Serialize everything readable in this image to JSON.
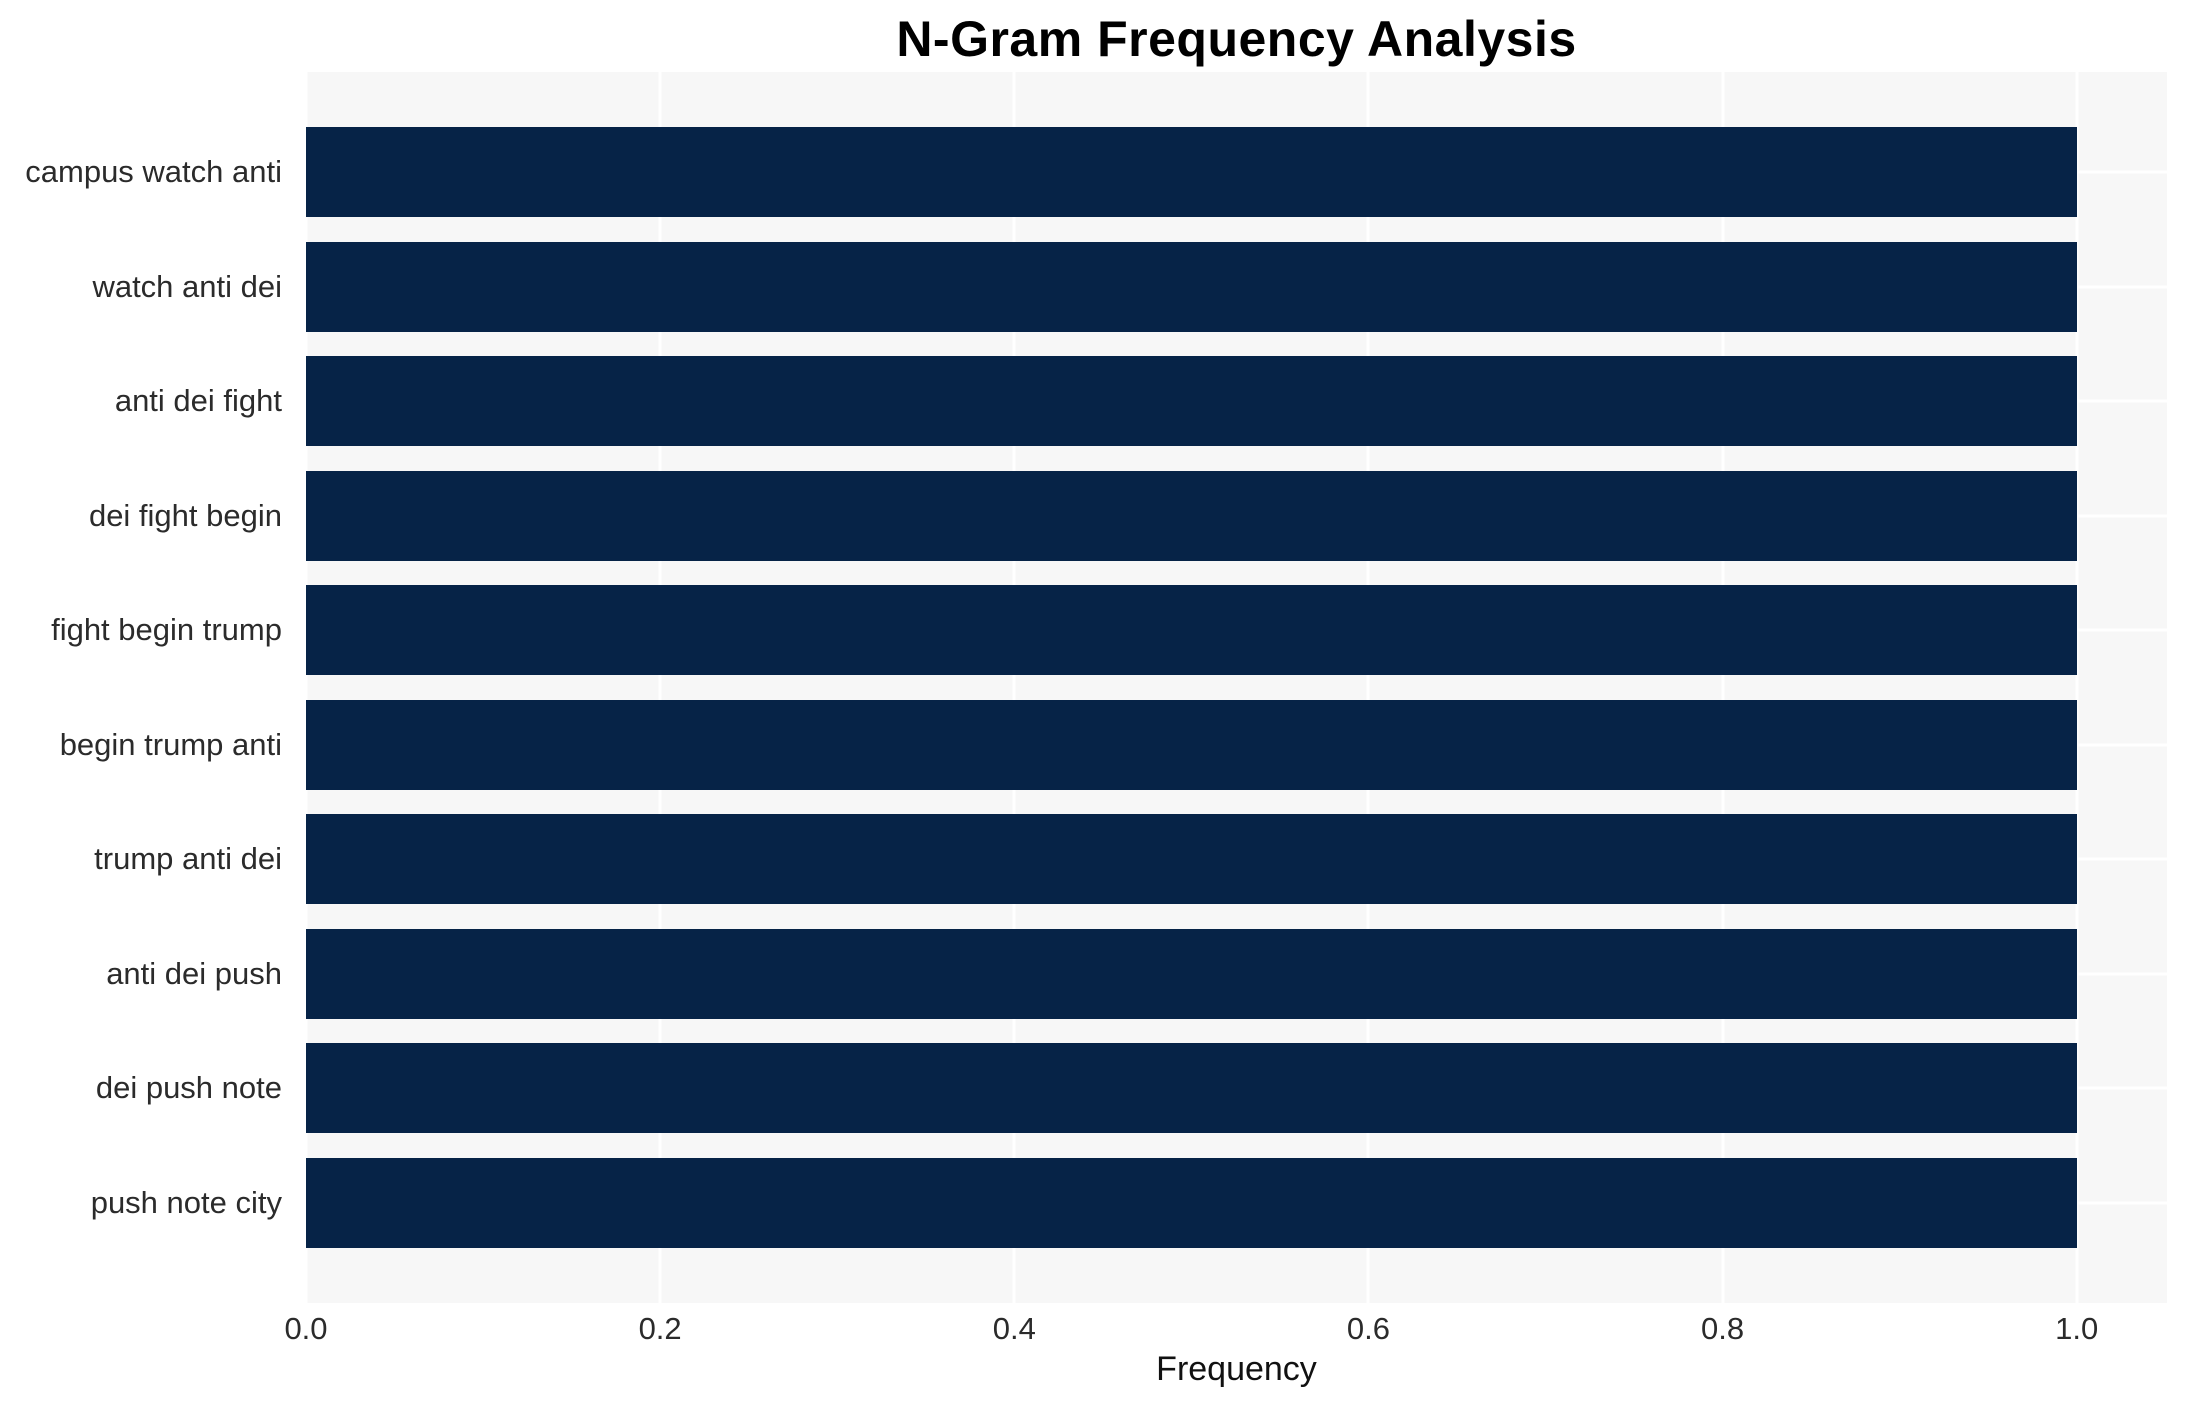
{
  "chart_data": {
    "type": "bar",
    "orientation": "horizontal",
    "title": "N-Gram Frequency Analysis",
    "xlabel": "Frequency",
    "ylabel": "",
    "categories": [
      "campus watch anti",
      "watch anti dei",
      "anti dei fight",
      "dei fight begin",
      "fight begin trump",
      "begin trump anti",
      "trump anti dei",
      "anti dei push",
      "dei push note",
      "push note city"
    ],
    "values": [
      1.0,
      1.0,
      1.0,
      1.0,
      1.0,
      1.0,
      1.0,
      1.0,
      1.0,
      1.0
    ],
    "xlim": [
      0,
      1.051
    ],
    "xticks": [
      0,
      0.2,
      0.4,
      0.6,
      0.8,
      1.0
    ],
    "xtick_labels": [
      "0.0",
      "0.2",
      "0.4",
      "0.6",
      "0.8",
      "1.0"
    ],
    "grid": true,
    "legend_position": "none",
    "colors": {
      "bar": "#062347",
      "plot_background": "#f7f7f7",
      "gridline": "#ffffff",
      "figure_background": "#ffffff",
      "tick_label": "#2b2b2b",
      "axis_label": "#111111",
      "title": "#000000"
    }
  }
}
